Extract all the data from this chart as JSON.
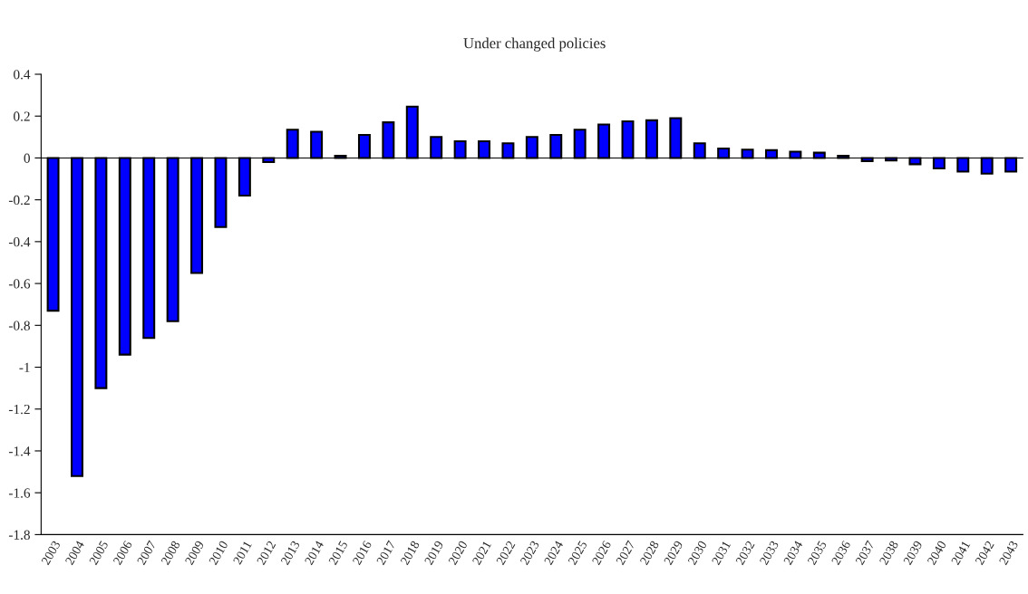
{
  "chart_data": {
    "type": "bar",
    "title": "Under changed policies",
    "categories": [
      "2003",
      "2004",
      "2005",
      "2006",
      "2007",
      "2008",
      "2009",
      "2010",
      "2011",
      "2012",
      "2013",
      "2014",
      "2015",
      "2016",
      "2017",
      "2018",
      "2019",
      "2020",
      "2021",
      "2022",
      "2023",
      "2024",
      "2025",
      "2026",
      "2027",
      "2028",
      "2029",
      "2030",
      "2031",
      "2032",
      "2033",
      "2034",
      "2035",
      "2036",
      "2037",
      "2038",
      "2039",
      "2040",
      "2041",
      "2042",
      "2043"
    ],
    "values": [
      -0.73,
      -1.52,
      -1.1,
      -0.94,
      -0.86,
      -0.78,
      -0.55,
      -0.33,
      -0.18,
      -0.02,
      0.135,
      0.125,
      0.01,
      0.11,
      0.17,
      0.245,
      0.1,
      0.08,
      0.08,
      0.07,
      0.1,
      0.11,
      0.135,
      0.16,
      0.175,
      0.18,
      0.19,
      0.07,
      0.045,
      0.04,
      0.037,
      0.03,
      0.025,
      0.01,
      -0.015,
      -0.012,
      -0.03,
      -0.05,
      -0.065,
      -0.075,
      -0.065
    ],
    "color": "#0000ff",
    "ylim": [
      -1.8,
      0.4
    ],
    "yticks": [
      {
        "value": -1.8,
        "label": "-1.8"
      },
      {
        "value": -1.6,
        "label": "-1.6"
      },
      {
        "value": -1.4,
        "label": "-1.4"
      },
      {
        "value": -1.2,
        "label": "-1.2"
      },
      {
        "value": -1,
        "label": "-1"
      },
      {
        "value": -0.8,
        "label": "-0.8"
      },
      {
        "value": -0.6,
        "label": "-0.6"
      },
      {
        "value": -0.4,
        "label": "-0.4"
      },
      {
        "value": -0.2,
        "label": "-0.2"
      },
      0,
      0.2,
      0.4
    ]
  }
}
